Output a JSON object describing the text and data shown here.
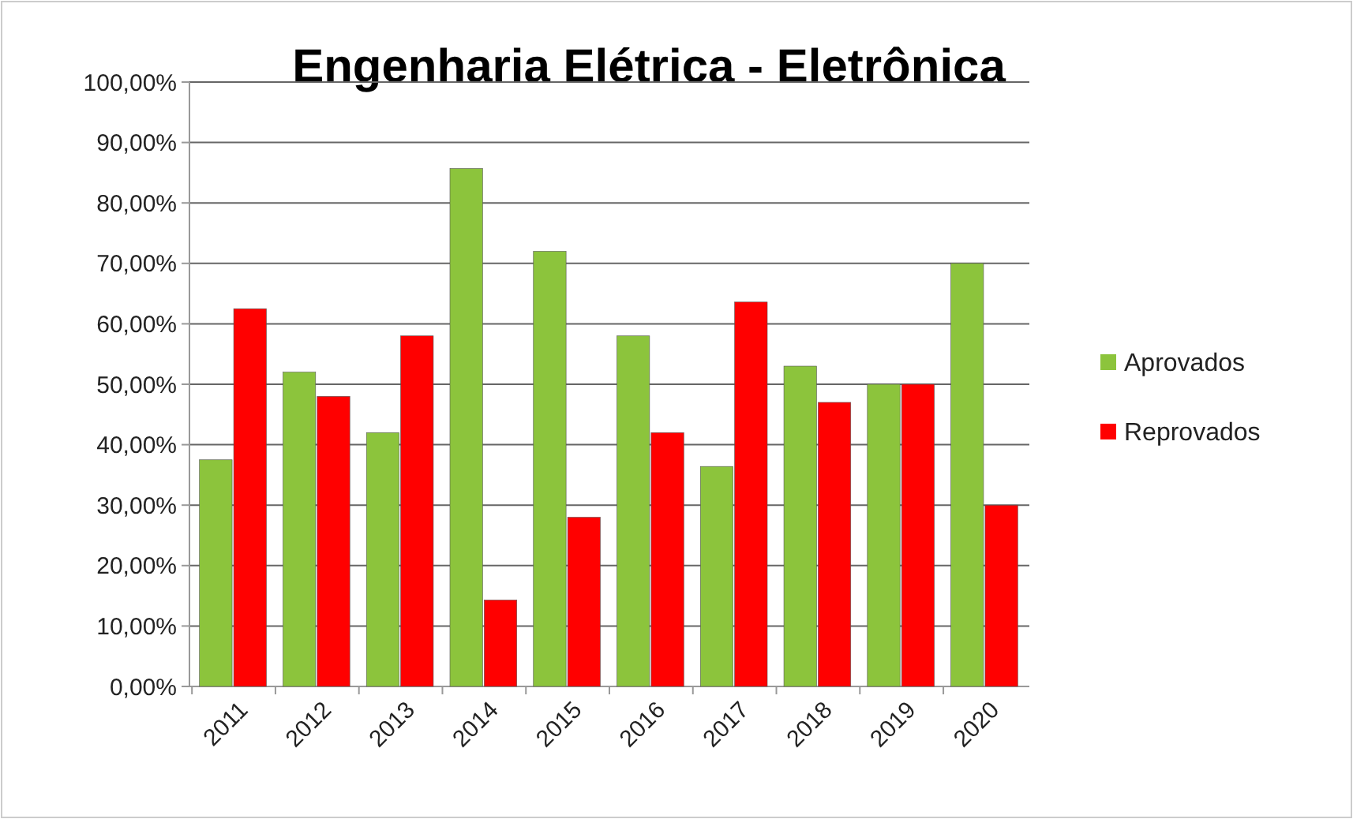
{
  "chart_data": {
    "type": "bar",
    "title": "Engenharia Elétrica - Eletrônica",
    "categories": [
      "2011",
      "2012",
      "2013",
      "2014",
      "2015",
      "2016",
      "2017",
      "2018",
      "2019",
      "2020"
    ],
    "series": [
      {
        "name": "Aprovados",
        "color": "#8cc43c",
        "values": [
          37.5,
          52,
          42,
          85.7,
          72,
          58,
          36.4,
          53,
          50,
          70
        ]
      },
      {
        "name": "Reprovados",
        "color": "#ff0000",
        "values": [
          62.5,
          48,
          58,
          14.3,
          28,
          42,
          63.6,
          47,
          50,
          30
        ]
      }
    ],
    "ylim": [
      0,
      100
    ],
    "yticks": [
      {
        "value": 0,
        "label": "0,00%"
      },
      {
        "value": 10,
        "label": "10,00%"
      },
      {
        "value": 20,
        "label": "20,00%"
      },
      {
        "value": 30,
        "label": "30,00%"
      },
      {
        "value": 40,
        "label": "40,00%"
      },
      {
        "value": 50,
        "label": "50,00%"
      },
      {
        "value": 60,
        "label": "60,00%"
      },
      {
        "value": 70,
        "label": "70,00%"
      },
      {
        "value": 80,
        "label": "80,00%"
      },
      {
        "value": 90,
        "label": "90,00%"
      },
      {
        "value": 100,
        "label": "100,00%"
      }
    ],
    "grid": "y",
    "legend": "right"
  }
}
